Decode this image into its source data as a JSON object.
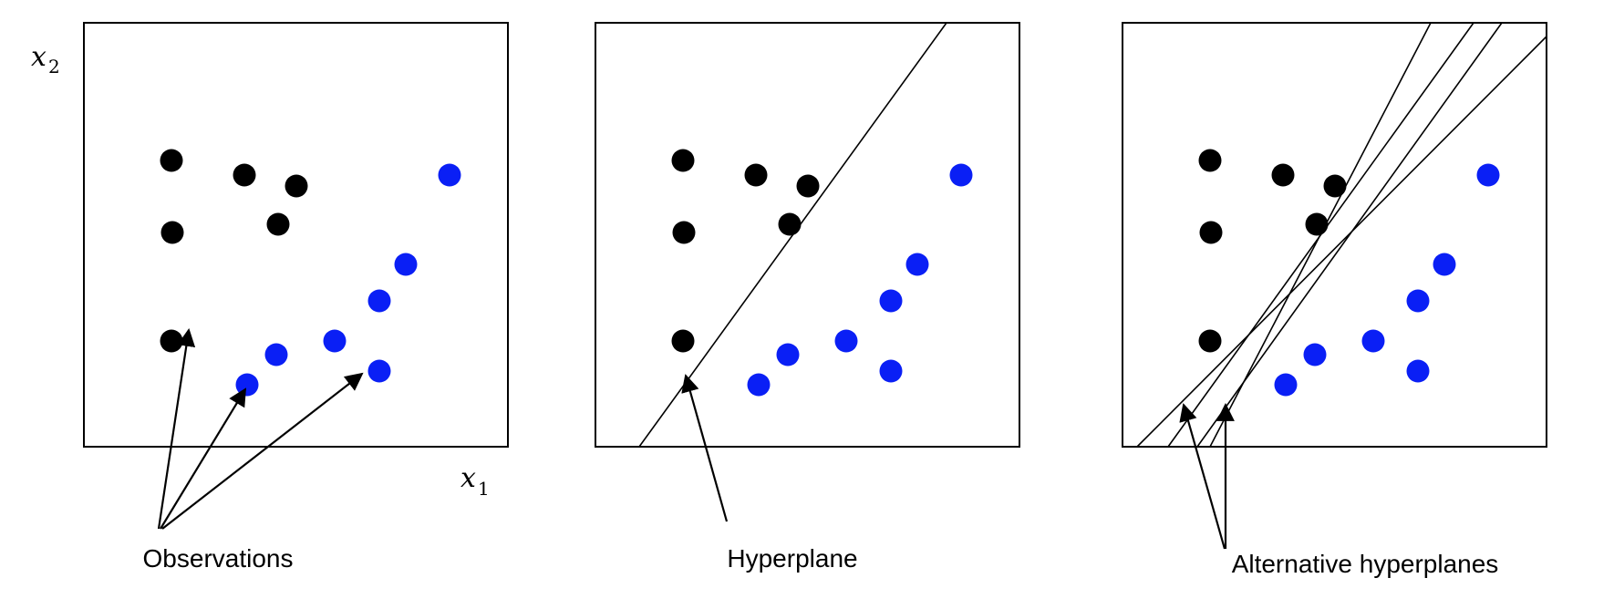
{
  "colors": {
    "class_a": "#000000",
    "class_b": "#0a1ff5",
    "frame": "#000000",
    "line": "#000000"
  },
  "axes": {
    "x_label": "x",
    "x_subscript": "1",
    "y_label": "x",
    "y_subscript": "2"
  },
  "observations": {
    "class_a": [
      [
        96,
        314
      ],
      [
        176,
        298
      ],
      [
        233,
        286
      ],
      [
        97,
        235
      ],
      [
        213,
        244
      ],
      [
        96,
        116
      ]
    ],
    "class_b": [
      [
        401,
        298
      ],
      [
        353,
        200
      ],
      [
        324,
        160
      ],
      [
        275,
        116
      ],
      [
        211,
        101
      ],
      [
        324,
        83
      ],
      [
        179,
        68
      ]
    ]
  },
  "panels": [
    {
      "id": "observations",
      "label": "Observations",
      "lines": []
    },
    {
      "id": "hyperplane",
      "label": "Hyperplane",
      "lines": [
        [
          [
            48,
            0
          ],
          [
            385,
            465
          ]
        ]
      ]
    },
    {
      "id": "alternatives",
      "label": "Alternative hyperplanes",
      "lines": [
        [
          [
            16,
            0
          ],
          [
            465,
            450
          ]
        ],
        [
          [
            50,
            0
          ],
          [
            385,
            465
          ]
        ],
        [
          [
            82,
            0
          ],
          [
            416,
            465
          ]
        ],
        [
          [
            96,
            0
          ],
          [
            338,
            465
          ]
        ]
      ]
    }
  ]
}
